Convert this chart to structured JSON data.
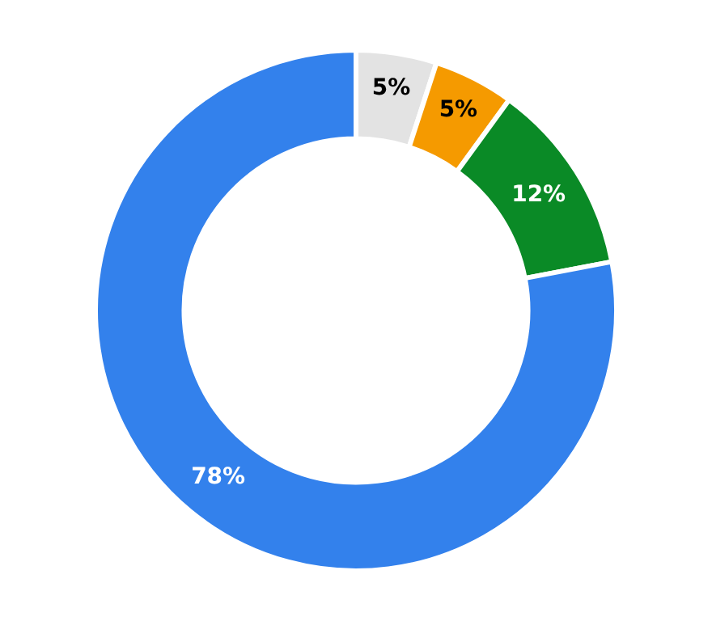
{
  "chart_data": {
    "type": "donut",
    "categories": [
      null,
      null,
      null,
      null
    ],
    "values": [
      5,
      5,
      12,
      78
    ],
    "colors": [
      "#e3e3e3",
      "#f59a00",
      "#0a8a26",
      "#3381ec"
    ],
    "value_labels": [
      "5%",
      "5%",
      "12%",
      "78%"
    ],
    "legend": false
  }
}
